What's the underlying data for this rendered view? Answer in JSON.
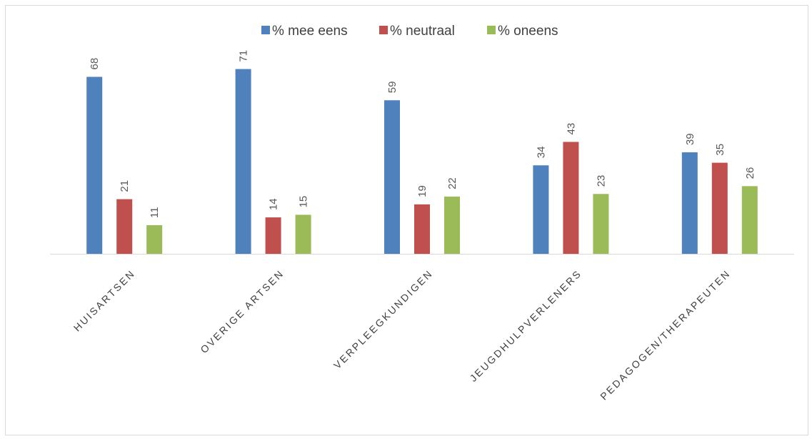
{
  "chart_data": {
    "type": "bar",
    "title": "",
    "xlabel": "",
    "ylabel": "",
    "ylim": [
      0,
      80
    ],
    "grid": false,
    "legend_position": "top",
    "categories": [
      "HUISARTSEN",
      "OVERIGE ARTSEN",
      "VERPLEEGKUNDIGEN",
      "JEUGDHULPVERLENERS",
      "PEDAGOGEN/THERAPEUTEN"
    ],
    "series": [
      {
        "name": "% mee eens",
        "color": "#4f81bd",
        "values": [
          68,
          71,
          59,
          34,
          39
        ]
      },
      {
        "name": "% neutraal",
        "color": "#c0504d",
        "values": [
          21,
          14,
          19,
          43,
          35
        ]
      },
      {
        "name": "% oneens",
        "color": "#9bbb59",
        "values": [
          11,
          15,
          22,
          23,
          26
        ]
      }
    ]
  }
}
